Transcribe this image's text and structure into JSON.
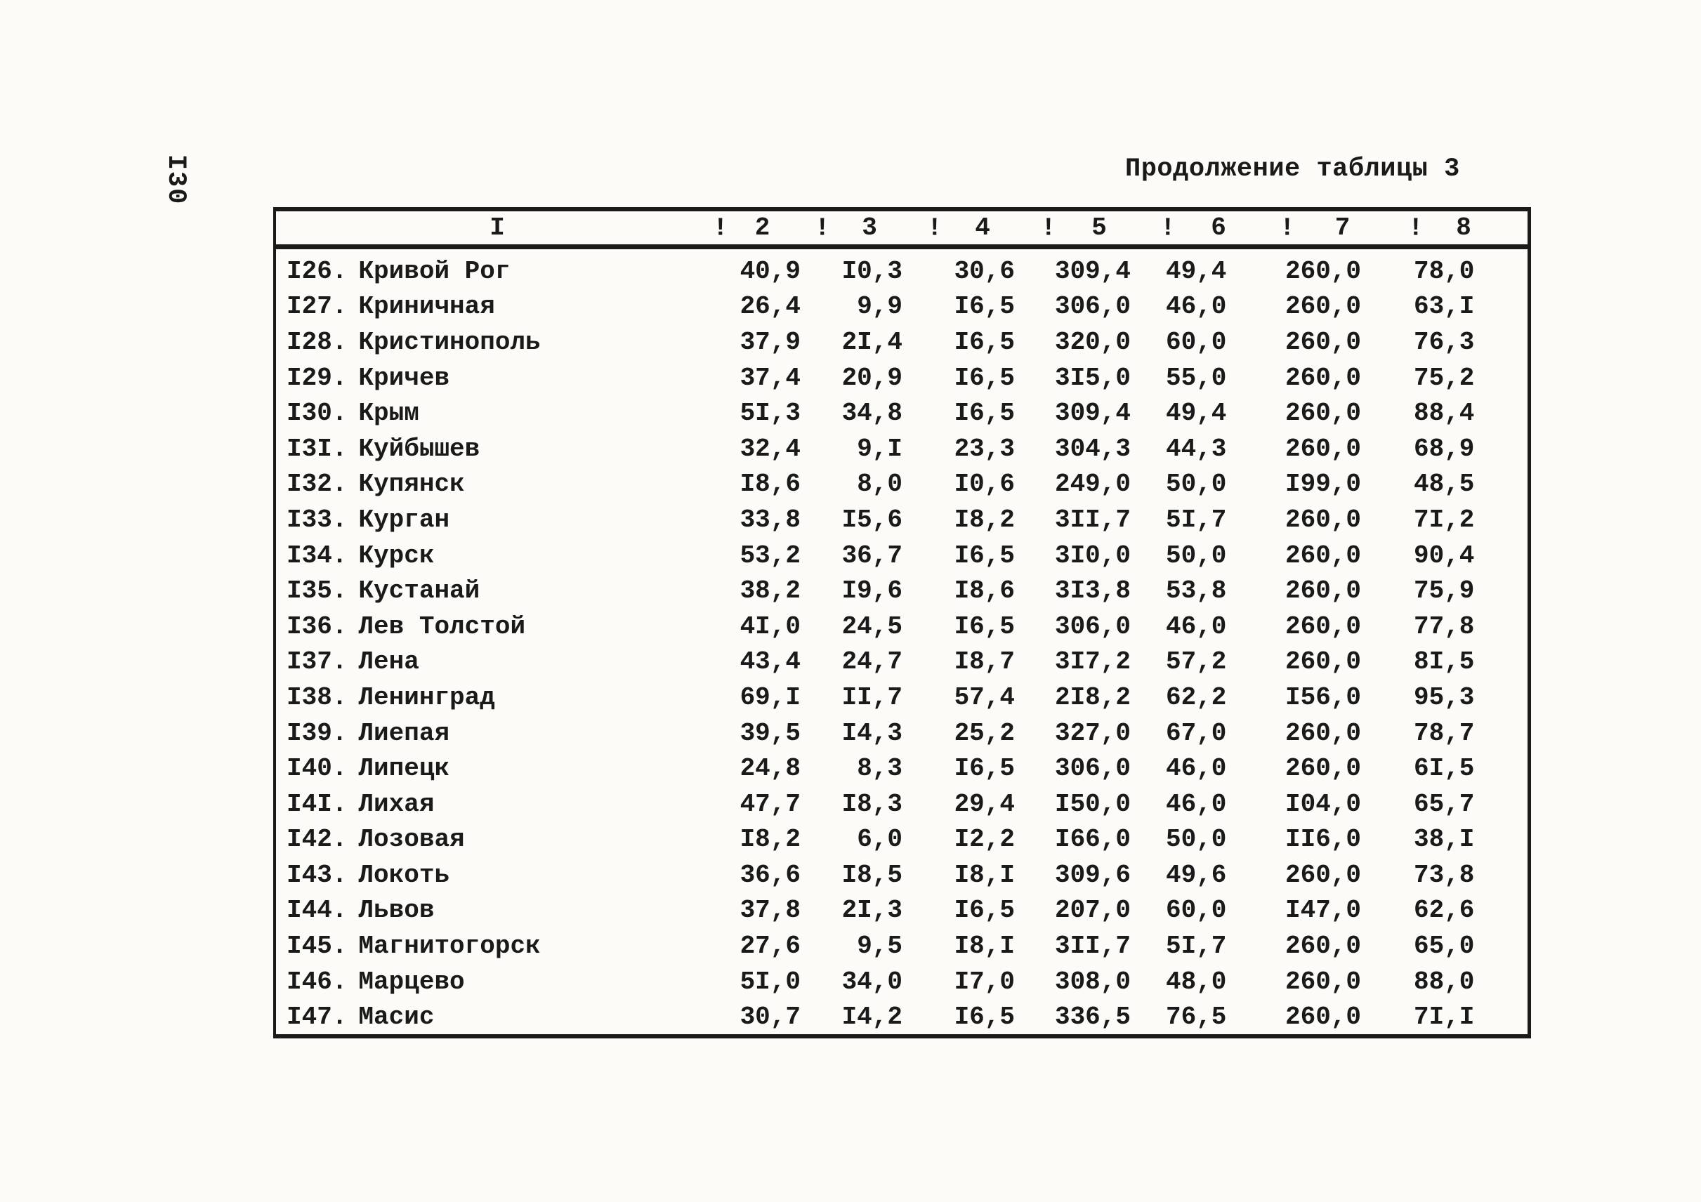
{
  "page": {
    "side_number": "I30",
    "title": "Продолжение таблицы 3"
  },
  "table": {
    "header": {
      "name_col": "I",
      "separator": "!",
      "cols": [
        "2",
        "3",
        "4",
        "5",
        "6",
        "7",
        "8"
      ]
    },
    "rows": [
      {
        "no": "I26.",
        "name": "Кривой Рог",
        "values": [
          "40,9",
          "I0,3",
          "30,6",
          "309,4",
          "49,4",
          "260,0",
          "78,0"
        ]
      },
      {
        "no": "I27.",
        "name": "Криничная",
        "values": [
          "26,4",
          "9,9",
          "I6,5",
          "306,0",
          "46,0",
          "260,0",
          "63,I"
        ]
      },
      {
        "no": "I28.",
        "name": "Кристинополь",
        "values": [
          "37,9",
          "2I,4",
          "I6,5",
          "320,0",
          "60,0",
          "260,0",
          "76,3"
        ]
      },
      {
        "no": "I29.",
        "name": "Кричев",
        "values": [
          "37,4",
          "20,9",
          "I6,5",
          "3I5,0",
          "55,0",
          "260,0",
          "75,2"
        ]
      },
      {
        "no": "I30.",
        "name": "Крым",
        "values": [
          "5I,3",
          "34,8",
          "I6,5",
          "309,4",
          "49,4",
          "260,0",
          "88,4"
        ]
      },
      {
        "no": "I3I.",
        "name": "Куйбышев",
        "values": [
          "32,4",
          "9,I",
          "23,3",
          "304,3",
          "44,3",
          "260,0",
          "68,9"
        ]
      },
      {
        "no": "I32.",
        "name": "Купянск",
        "values": [
          "I8,6",
          "8,0",
          "I0,6",
          "249,0",
          "50,0",
          "I99,0",
          "48,5"
        ]
      },
      {
        "no": "I33.",
        "name": "Курган",
        "values": [
          "33,8",
          "I5,6",
          "I8,2",
          "3II,7",
          "5I,7",
          "260,0",
          "7I,2"
        ]
      },
      {
        "no": "I34.",
        "name": "Курск",
        "values": [
          "53,2",
          "36,7",
          "I6,5",
          "3I0,0",
          "50,0",
          "260,0",
          "90,4"
        ]
      },
      {
        "no": "I35.",
        "name": "Кустанай",
        "values": [
          "38,2",
          "I9,6",
          "I8,6",
          "3I3,8",
          "53,8",
          "260,0",
          "75,9"
        ]
      },
      {
        "no": "I36.",
        "name": "Лев Толстой",
        "values": [
          "4I,0",
          "24,5",
          "I6,5",
          "306,0",
          "46,0",
          "260,0",
          "77,8"
        ]
      },
      {
        "no": "I37.",
        "name": "Лена",
        "values": [
          "43,4",
          "24,7",
          "I8,7",
          "3I7,2",
          "57,2",
          "260,0",
          "8I,5"
        ]
      },
      {
        "no": "I38.",
        "name": "Ленинград",
        "values": [
          "69,I",
          "II,7",
          "57,4",
          "2I8,2",
          "62,2",
          "I56,0",
          "95,3"
        ]
      },
      {
        "no": "I39.",
        "name": "Лиепая",
        "values": [
          "39,5",
          "I4,3",
          "25,2",
          "327,0",
          "67,0",
          "260,0",
          "78,7"
        ]
      },
      {
        "no": "I40.",
        "name": "Липецк",
        "values": [
          "24,8",
          "8,3",
          "I6,5",
          "306,0",
          "46,0",
          "260,0",
          "6I,5"
        ]
      },
      {
        "no": "I4I.",
        "name": "Лихая",
        "values": [
          "47,7",
          "I8,3",
          "29,4",
          "I50,0",
          "46,0",
          "I04,0",
          "65,7"
        ]
      },
      {
        "no": "I42.",
        "name": "Лозовая",
        "values": [
          "I8,2",
          "6,0",
          "I2,2",
          "I66,0",
          "50,0",
          "II6,0",
          "38,I"
        ]
      },
      {
        "no": "I43.",
        "name": "Локоть",
        "values": [
          "36,6",
          "I8,5",
          "I8,I",
          "309,6",
          "49,6",
          "260,0",
          "73,8"
        ]
      },
      {
        "no": "I44.",
        "name": "Львов",
        "values": [
          "37,8",
          "2I,3",
          "I6,5",
          "207,0",
          "60,0",
          "I47,0",
          "62,6"
        ]
      },
      {
        "no": "I45.",
        "name": "Магнитогорск",
        "values": [
          "27,6",
          "9,5",
          "I8,I",
          "3II,7",
          "5I,7",
          "260,0",
          "65,0"
        ]
      },
      {
        "no": "I46.",
        "name": "Марцево",
        "values": [
          "5I,0",
          "34,0",
          "I7,0",
          "308,0",
          "48,0",
          "260,0",
          "88,0"
        ]
      },
      {
        "no": "I47.",
        "name": "Масис",
        "values": [
          "30,7",
          "I4,2",
          "I6,5",
          "336,5",
          "76,5",
          "260,0",
          "7I,I"
        ]
      }
    ]
  }
}
